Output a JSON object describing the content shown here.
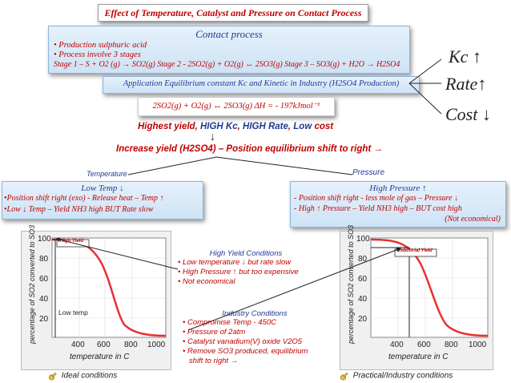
{
  "title": "Effect of Temperature, Catalyst and Pressure on Contact Process",
  "contact": {
    "heading": "Contact process",
    "bullets": [
      "• Production sulphuric acid",
      "• Process involve 3 stages"
    ],
    "stages": "Stage 1 – S + O2 (g) → SO2(g)   Stage 2 - 2SO2(g) + O2(g) ↔ 2SO3(g)   Stage 3 – SO3(g) + H2O → H2SO4"
  },
  "application": "Application Equilibrium constant Kc and Kinetic in Industry (H2SO4 Production)",
  "equation": "2SO2(g) + O2(g) ↔ 2SO3(g)  ΔH = - 197kJmol⁻¹",
  "side_labels": {
    "kc": "Kc",
    "kc_arrow": "↑",
    "rate": "Rate",
    "rate_arrow": "↑",
    "cost": "Cost",
    "cost_arrow": "↓"
  },
  "highest_yield": {
    "p1": "Highest yield, ",
    "p2": "HIGH Kc",
    "p3": ", ",
    "p4": "HIGH Rate",
    "p5": ", ",
    "p6": "Low",
    "p7": " cost"
  },
  "increase_yield": "Increase yield (H2SO4) – Position equilibrium shift to right →",
  "temperature_label": "Temperature",
  "pressure_label": "Pressure",
  "low_temp": {
    "heading": "Low Temp ↓",
    "lines": [
      "•Position shift right (exo) - Release heat – Temp ↑",
      "•Low ↓ Temp – Yield NH3 high BUT Rate slow"
    ]
  },
  "high_pressure": {
    "heading": "High Pressure ↑",
    "lines": [
      "- Position shift right - less mole of gas – Pressure ↓",
      "- High ↑ Pressure – Yield NH3 high – BUT cost high",
      "(Not economical)"
    ]
  },
  "high_yield_conditions": {
    "heading": "High Yield Conditions",
    "items": [
      "• Low temperature ↓ but rate slow",
      "• High Pressure ↑ but too expensive",
      "• Not economical"
    ]
  },
  "industry_conditions": {
    "heading": "Industry Conditions",
    "items": [
      "• Compromise Temp - 450C",
      "• Pressure of 2atm",
      "• Catalyst vanadium(V) oxide V2O5",
      "• Remove SO3 produced, equilibrium",
      "   shift to right →"
    ]
  },
  "charts": {
    "ylabel": "percentage of SO2 converted to SO3",
    "xlabel": "temperature in C",
    "yticks": [
      "100",
      "80",
      "60",
      "40",
      "20"
    ],
    "xticks": [
      "400",
      "600",
      "800",
      "1000"
    ],
    "left_tag": "High Yield",
    "right_tag": "Industrial Yield",
    "low_temp_label": "Low temp"
  },
  "footer": {
    "left": "Ideal conditions",
    "right": "Practical/Industry conditions"
  },
  "colors": {
    "red": "#c00000",
    "blue": "#1f3a93",
    "box_gradient": "#cde3f6"
  }
}
